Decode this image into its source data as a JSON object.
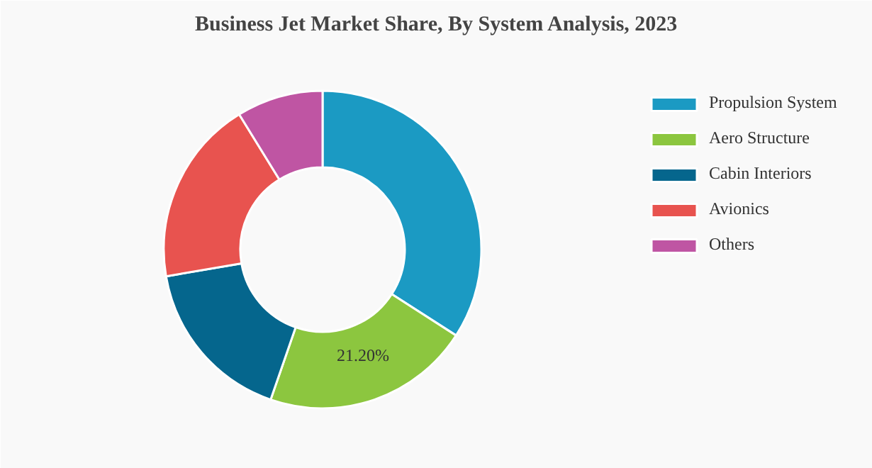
{
  "chart_data": {
    "type": "donut",
    "title": "Business Jet Market Share, By System Analysis, 2023",
    "categories": [
      "Propulsion System",
      "Aero Structure",
      "Cabin Interiors",
      "Avionics",
      "Others"
    ],
    "values": [
      34.1,
      21.2,
      17.0,
      18.9,
      8.8
    ],
    "colors": [
      "#1b9ac3",
      "#8cc63f",
      "#05668d",
      "#e8534f",
      "#bf55a3"
    ],
    "value_labels": [
      null,
      "21.20%",
      null,
      null,
      null
    ],
    "legend": "right"
  }
}
